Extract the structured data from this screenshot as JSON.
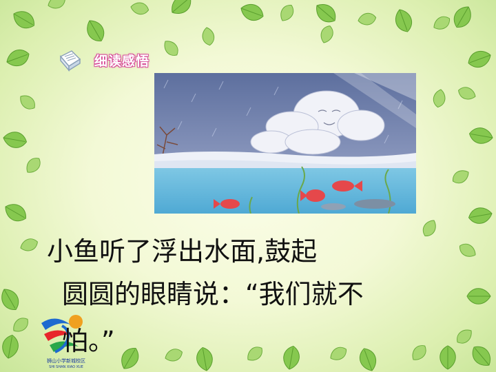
{
  "header": {
    "icon": "notebook-icon",
    "label": "细读感悟"
  },
  "illustration": {
    "description_icon": "river-fish-illustration"
  },
  "text": {
    "line1": "小鱼听了浮出水面,鼓起",
    "line2": "圆圆的眼睛说：“我们就不",
    "line3": "怕。”"
  },
  "logo": {
    "title": "狮山小学新城校区",
    "subtitle": "SHI SHAN XIAO XUE"
  },
  "colors": {
    "header_outline": "#d8529a",
    "leaf_green": "#7cc24a"
  }
}
